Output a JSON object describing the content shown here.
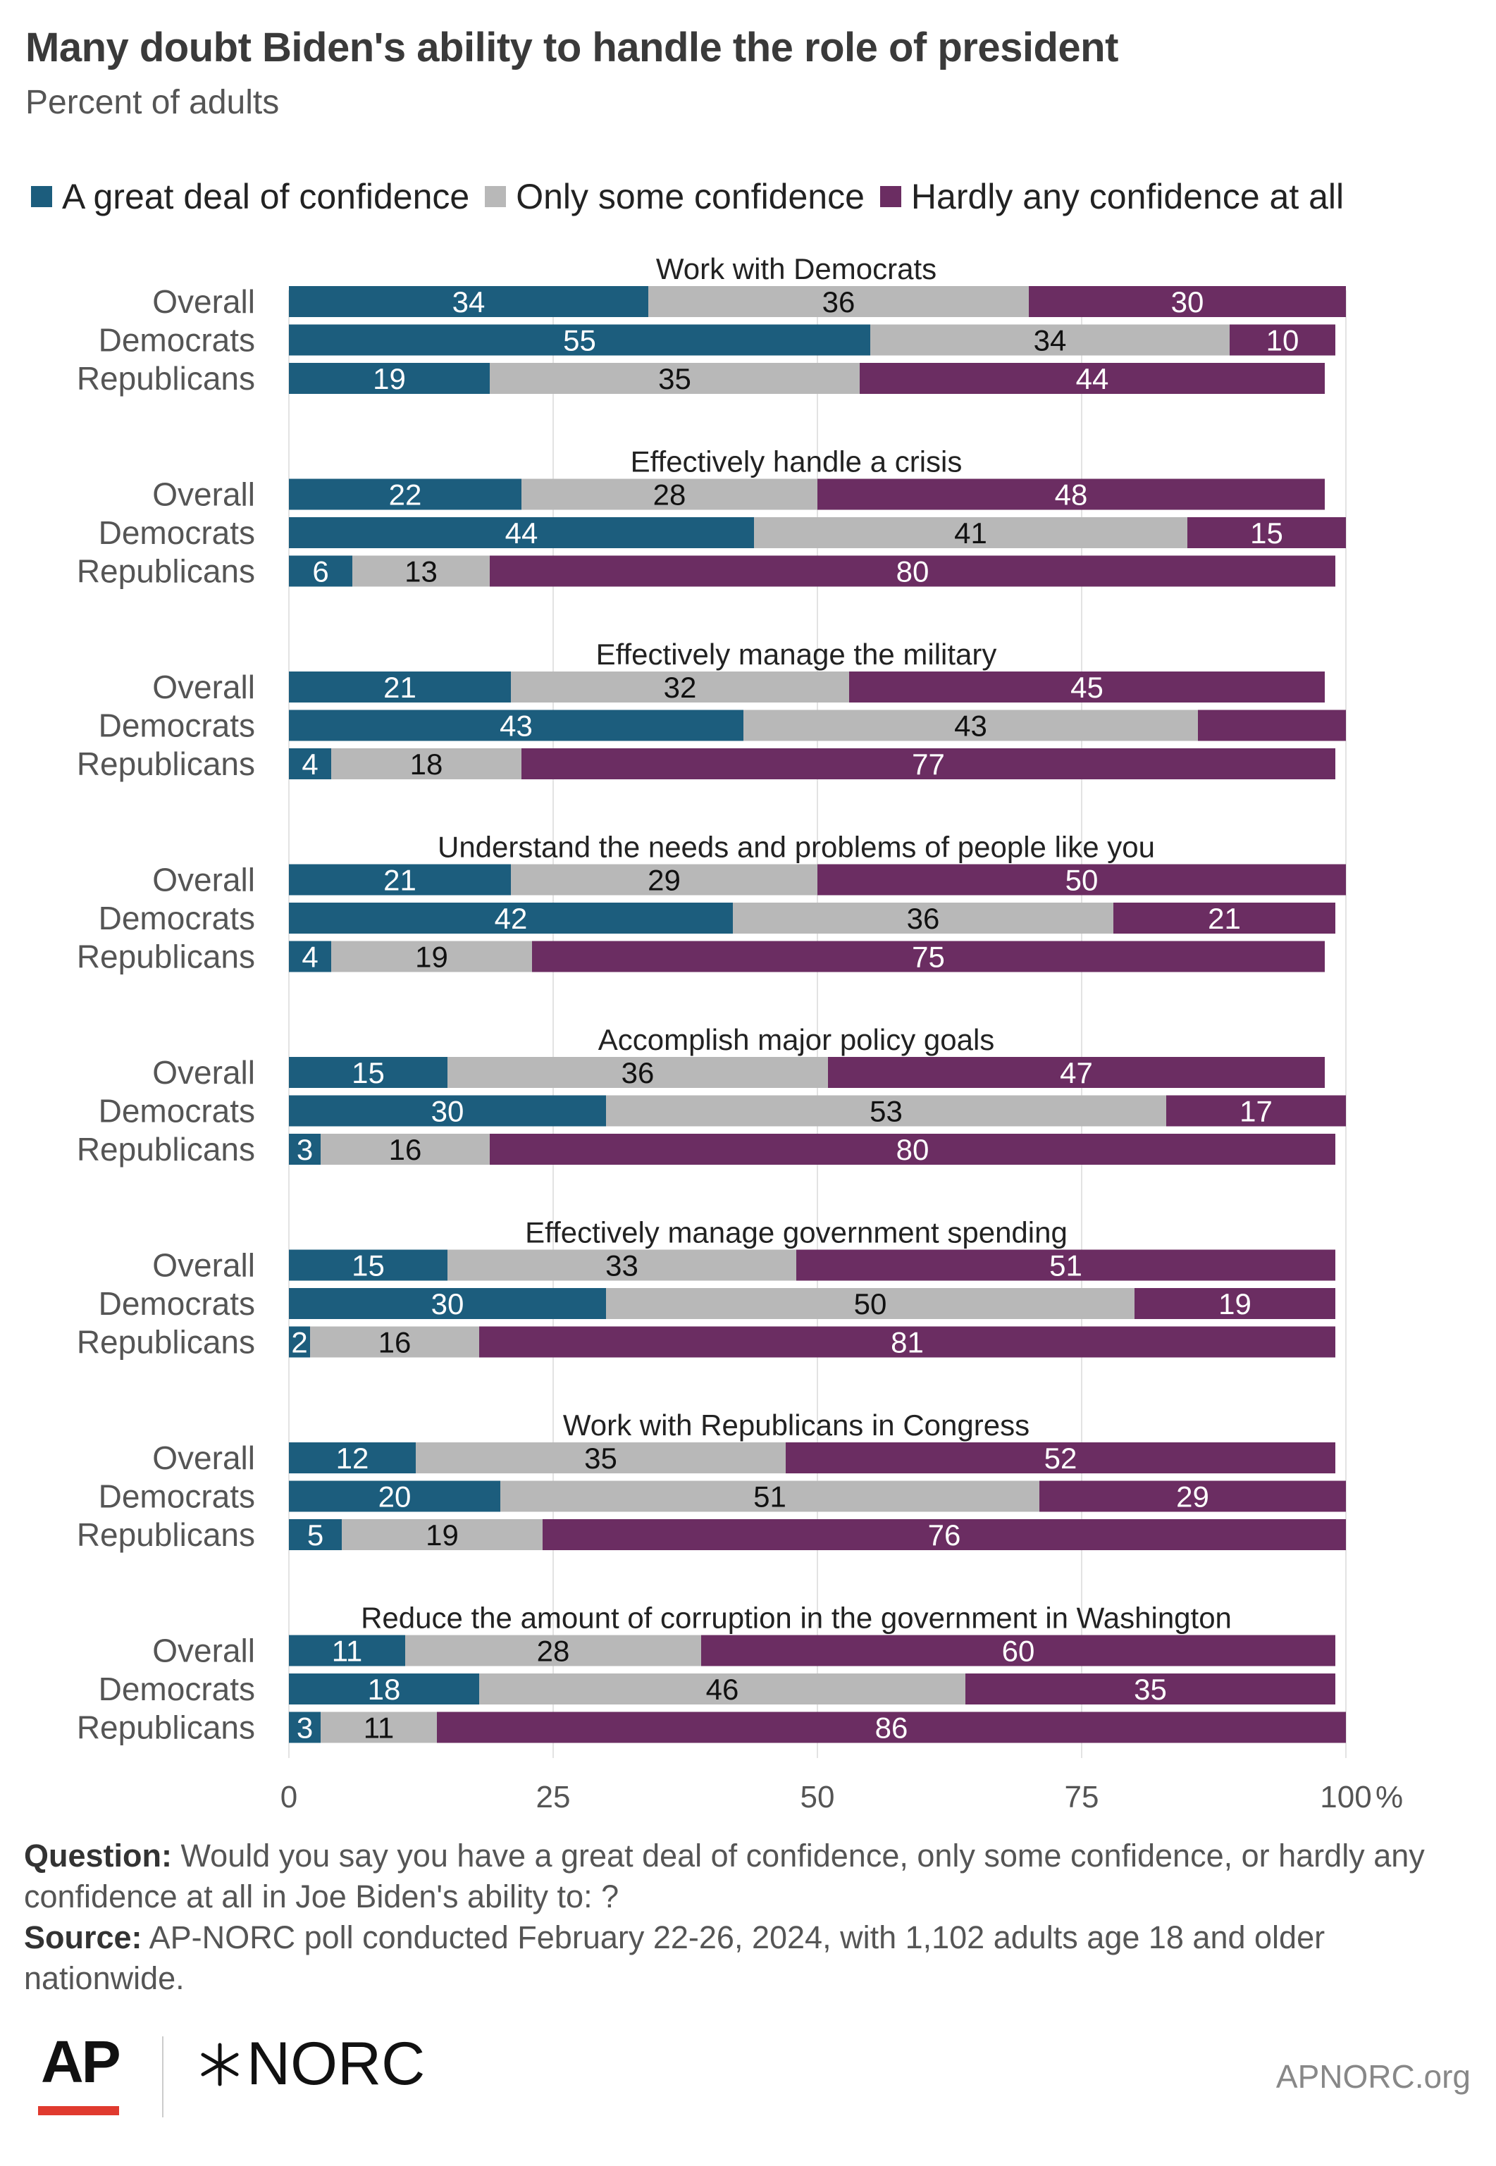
{
  "header": {
    "title": "Many doubt Biden's ability to handle the role of president",
    "subtitle": "Percent of adults"
  },
  "legend": [
    {
      "label": "A great deal of confidence",
      "color": "#1c5d7d"
    },
    {
      "label": "Only some confidence",
      "color": "#b8b8b8"
    },
    {
      "label": "Hardly any confidence at all",
      "color": "#6b2d62"
    }
  ],
  "chart_data": {
    "type": "bar",
    "orientation": "horizontal",
    "stacked": true,
    "xlim": [
      0,
      100
    ],
    "x_ticks": [
      "0",
      "25",
      "50",
      "75",
      "100"
    ],
    "x_unit": "%",
    "grid": true,
    "legend_position": "top",
    "series_names": [
      "A great deal of confidence",
      "Only some confidence",
      "Hardly any confidence at all"
    ],
    "series_colors": [
      "#1c5d7d",
      "#b8b8b8",
      "#6b2d62"
    ],
    "groups": [
      {
        "title": "Work with Democrats",
        "rows": [
          {
            "label": "Overall",
            "values": [
              34,
              36,
              30
            ]
          },
          {
            "label": "Democrats",
            "values": [
              55,
              34,
              10
            ]
          },
          {
            "label": "Republicans",
            "values": [
              19,
              35,
              44
            ]
          }
        ]
      },
      {
        "title": "Effectively handle a crisis",
        "rows": [
          {
            "label": "Overall",
            "values": [
              22,
              28,
              48
            ]
          },
          {
            "label": "Democrats",
            "values": [
              44,
              41,
              15
            ]
          },
          {
            "label": "Republicans",
            "values": [
              6,
              13,
              80
            ]
          }
        ]
      },
      {
        "title": "Effectively manage the military",
        "rows": [
          {
            "label": "Overall",
            "values": [
              21,
              32,
              45
            ]
          },
          {
            "label": "Democrats",
            "values": [
              43,
              43,
              14
            ]
          },
          {
            "label": "Republicans",
            "values": [
              4,
              18,
              77
            ]
          }
        ]
      },
      {
        "title": "Understand the needs and problems of people like you",
        "rows": [
          {
            "label": "Overall",
            "values": [
              21,
              29,
              50
            ]
          },
          {
            "label": "Democrats",
            "values": [
              42,
              36,
              21
            ]
          },
          {
            "label": "Republicans",
            "values": [
              4,
              19,
              75
            ]
          }
        ]
      },
      {
        "title": "Accomplish major policy goals",
        "rows": [
          {
            "label": "Overall",
            "values": [
              15,
              36,
              47
            ]
          },
          {
            "label": "Democrats",
            "values": [
              30,
              53,
              17
            ]
          },
          {
            "label": "Republicans",
            "values": [
              3,
              16,
              80
            ]
          }
        ]
      },
      {
        "title": "Effectively manage government spending",
        "rows": [
          {
            "label": "Overall",
            "values": [
              15,
              33,
              51
            ]
          },
          {
            "label": "Democrats",
            "values": [
              30,
              50,
              19
            ]
          },
          {
            "label": "Republicans",
            "values": [
              2,
              16,
              81
            ]
          }
        ]
      },
      {
        "title": "Work with Republicans in Congress",
        "rows": [
          {
            "label": "Overall",
            "values": [
              12,
              35,
              52
            ]
          },
          {
            "label": "Democrats",
            "values": [
              20,
              51,
              29
            ]
          },
          {
            "label": "Republicans",
            "values": [
              5,
              19,
              76
            ]
          }
        ]
      },
      {
        "title": "Reduce the amount of corruption in the government in Washington",
        "rows": [
          {
            "label": "Overall",
            "values": [
              11,
              28,
              60
            ]
          },
          {
            "label": "Democrats",
            "values": [
              18,
              46,
              35
            ]
          },
          {
            "label": "Republicans",
            "values": [
              3,
              11,
              86
            ]
          }
        ]
      }
    ],
    "hidden_labels": [
      [
        2,
        1,
        2
      ]
    ]
  },
  "footer": {
    "question_label": "Question:",
    "question_text": " Would you say you have a great deal of confidence, only some confidence, or hardly any confidence at all in Joe Biden's ability to: ?",
    "source_label": "Source:",
    "source_text": " AP-NORC poll conducted February 22-26, 2024, with 1,102 adults age 18 and older nationwide."
  },
  "branding": {
    "ap_logo": "AP",
    "norc_logo": "NORC",
    "norc_icon": "asterisk-icon",
    "website": "APNORC.org"
  }
}
